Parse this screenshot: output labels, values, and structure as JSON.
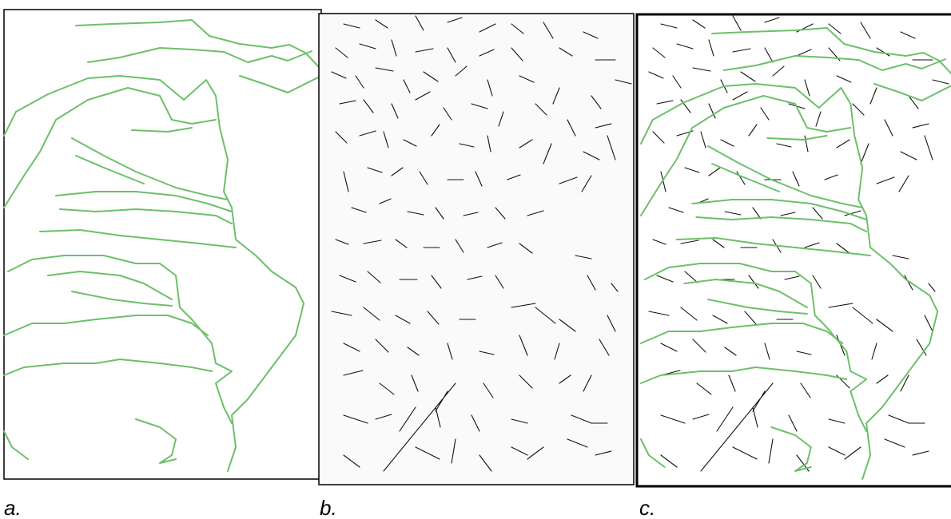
{
  "panels": [
    {
      "label": "a."
    },
    {
      "label": "b."
    },
    {
      "label": "c."
    }
  ]
}
